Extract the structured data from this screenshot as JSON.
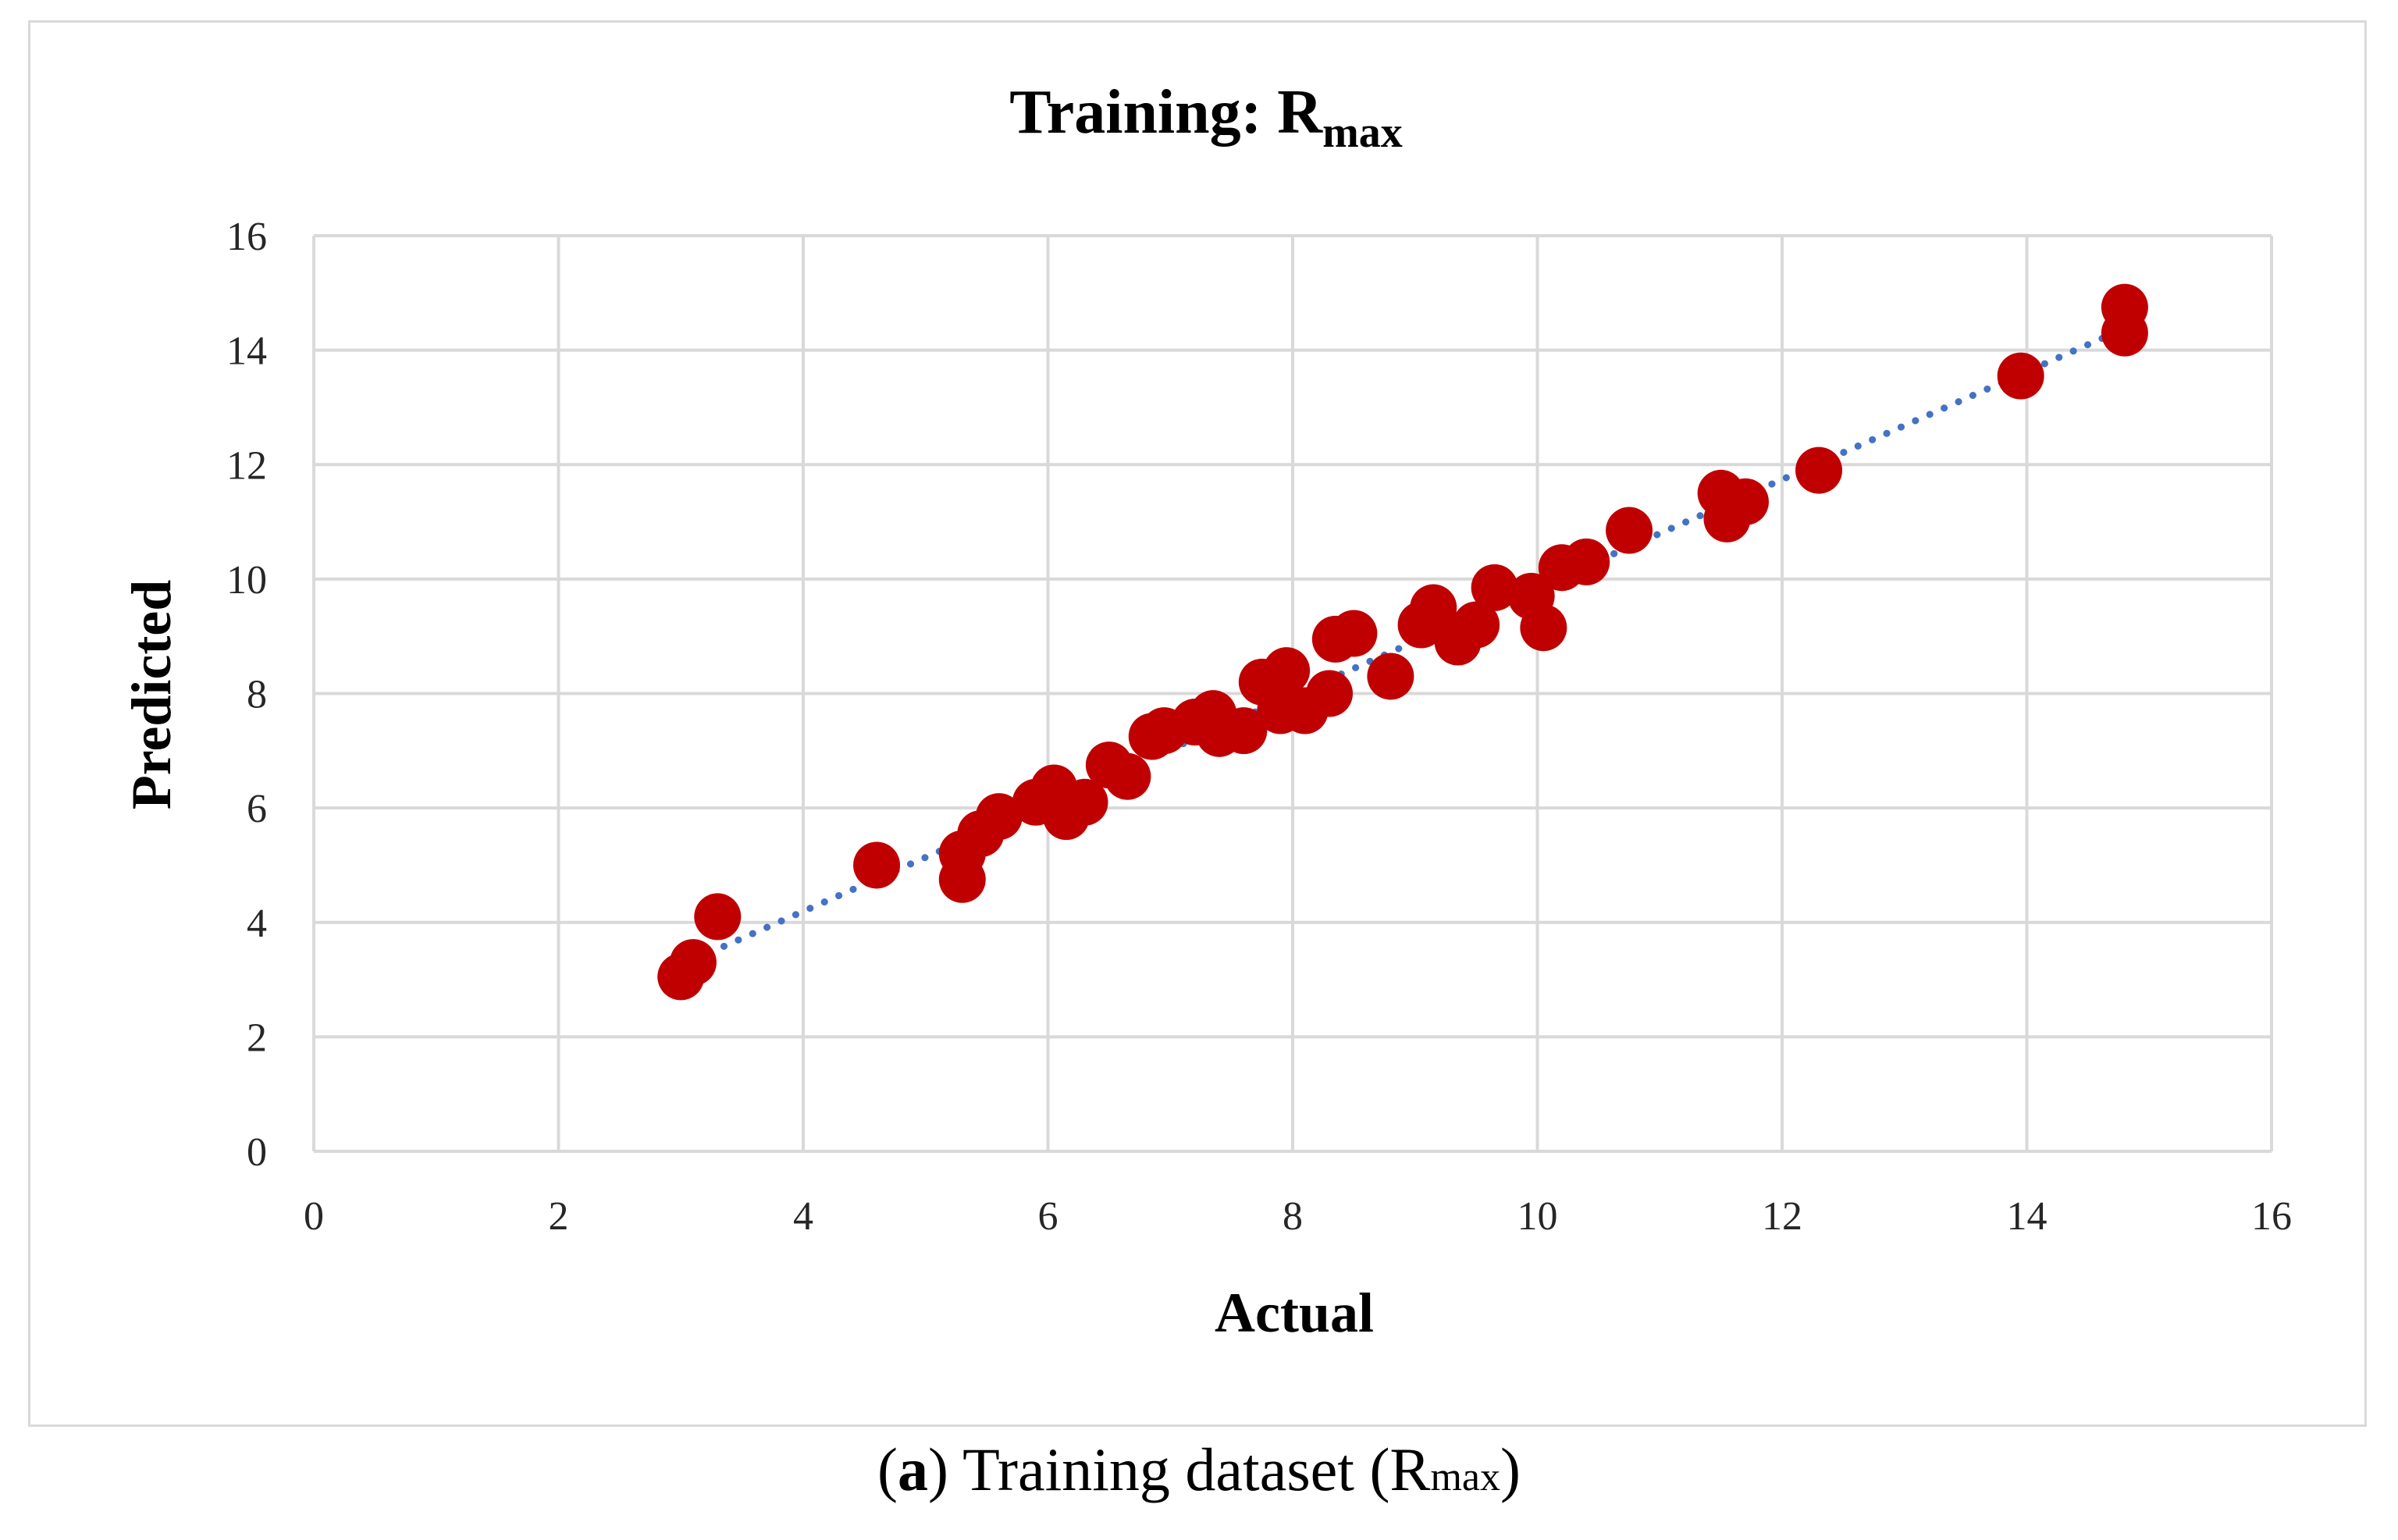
{
  "chart_data": {
    "type": "scatter",
    "title": "Training: R",
    "title_subscript": "max",
    "xlabel": "Actual",
    "ylabel": "Predicted",
    "xlim": [
      0,
      16
    ],
    "ylim": [
      0,
      16
    ],
    "x_ticks": [
      "0",
      "2",
      "4",
      "6",
      "8",
      "10",
      "12",
      "14",
      "16"
    ],
    "y_ticks": [
      "0",
      "2",
      "4",
      "6",
      "8",
      "10",
      "12",
      "14",
      "16"
    ],
    "grid": true,
    "legend": "none",
    "marker_color": "#c00000",
    "trendline": {
      "type": "linear",
      "style": "dotted",
      "color": "#4472c4",
      "x": [
        3.0,
        14.8
      ],
      "y": [
        3.25,
        14.38
      ]
    },
    "points": [
      [
        3.0,
        3.05
      ],
      [
        3.1,
        3.3
      ],
      [
        3.3,
        4.1
      ],
      [
        4.6,
        5.0
      ],
      [
        5.3,
        5.2
      ],
      [
        5.3,
        4.75
      ],
      [
        5.45,
        5.55
      ],
      [
        5.6,
        5.85
      ],
      [
        5.9,
        6.1
      ],
      [
        6.05,
        6.35
      ],
      [
        6.15,
        5.85
      ],
      [
        6.3,
        6.1
      ],
      [
        6.5,
        6.75
      ],
      [
        6.65,
        6.55
      ],
      [
        6.85,
        7.25
      ],
      [
        6.95,
        7.35
      ],
      [
        7.2,
        7.5
      ],
      [
        7.35,
        7.65
      ],
      [
        7.4,
        7.3
      ],
      [
        7.6,
        7.35
      ],
      [
        7.75,
        8.2
      ],
      [
        7.9,
        7.7
      ],
      [
        7.95,
        8.4
      ],
      [
        8.1,
        7.7
      ],
      [
        8.3,
        8.0
      ],
      [
        8.35,
        8.95
      ],
      [
        8.5,
        9.05
      ],
      [
        8.8,
        8.3
      ],
      [
        9.05,
        9.2
      ],
      [
        9.15,
        9.5
      ],
      [
        9.35,
        8.9
      ],
      [
        9.5,
        9.2
      ],
      [
        9.65,
        9.85
      ],
      [
        9.95,
        9.7
      ],
      [
        10.05,
        9.15
      ],
      [
        10.2,
        10.2
      ],
      [
        10.4,
        10.3
      ],
      [
        10.75,
        10.85
      ],
      [
        11.5,
        11.5
      ],
      [
        11.55,
        11.05
      ],
      [
        11.7,
        11.35
      ],
      [
        12.3,
        11.9
      ],
      [
        13.95,
        13.55
      ],
      [
        14.8,
        14.75
      ],
      [
        14.8,
        14.3
      ]
    ]
  },
  "caption": {
    "paren_open": "(",
    "letter": "a",
    "text": ") Training dataset (R",
    "subscript": "max",
    "paren_close": ")"
  }
}
